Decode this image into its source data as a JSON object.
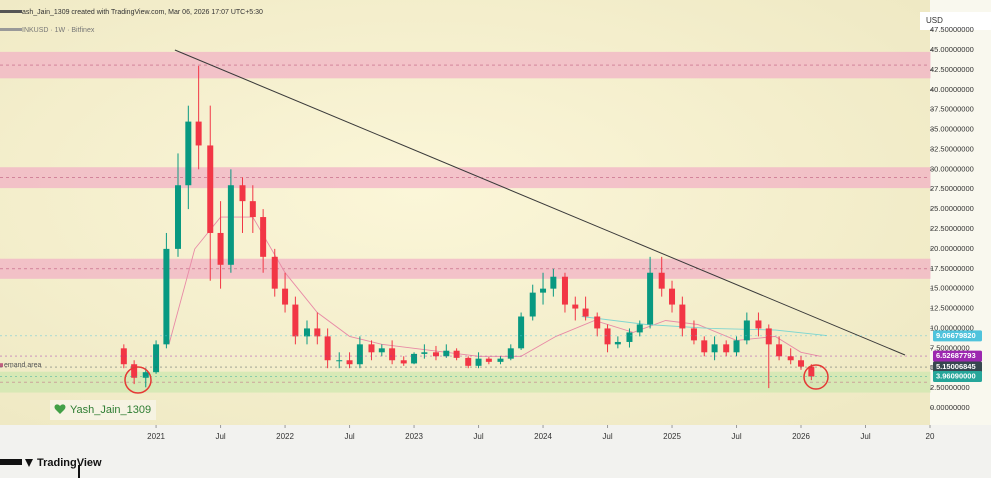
{
  "header": {
    "credit": "ash_Jain_1309 created with TradingView.com, Mar 06, 2026 17:07 UTC+5:30",
    "symbol": "INKUSD · 1W · Bitfinex"
  },
  "footer": {
    "brand": "TradingView"
  },
  "watermark": "Yash_Jain_1309",
  "chart_data": {
    "type": "candlestick",
    "axis_label": "USD",
    "up_color": "#089981",
    "down_color": "#f23645",
    "x": [
      2020.75,
      2020.83,
      2020.92,
      2021.0,
      2021.08,
      2021.17,
      2021.25,
      2021.33,
      2021.42,
      2021.5,
      2021.58,
      2021.67,
      2021.75,
      2021.83,
      2021.92,
      2022.0,
      2022.08,
      2022.17,
      2022.25,
      2022.33,
      2022.42,
      2022.5,
      2022.58,
      2022.67,
      2022.75,
      2022.83,
      2022.92,
      2023.0,
      2023.08,
      2023.17,
      2023.25,
      2023.33,
      2023.42,
      2023.5,
      2023.58,
      2023.67,
      2023.75,
      2023.83,
      2023.92,
      2024.0,
      2024.08,
      2024.17,
      2024.25,
      2024.33,
      2024.42,
      2024.5,
      2024.58,
      2024.67,
      2024.75,
      2024.83,
      2024.92,
      2025.0,
      2025.08,
      2025.17,
      2025.25,
      2025.33,
      2025.42,
      2025.5,
      2025.58,
      2025.67,
      2025.75,
      2025.83,
      2025.92,
      2026.0,
      2026.08
    ],
    "open": [
      7.5,
      5.5,
      3.8,
      4.5,
      8.0,
      20,
      28,
      36,
      33,
      22,
      18,
      28,
      26,
      24,
      19,
      15,
      13,
      9,
      10,
      9,
      6,
      6,
      5.5,
      8,
      7,
      7.5,
      6,
      5.6,
      6.8,
      7,
      6.5,
      7.2,
      6.3,
      5.3,
      6.2,
      5.8,
      6.2,
      7.5,
      11.5,
      14.5,
      15,
      16.5,
      13,
      12.5,
      11.5,
      10,
      8,
      8.3,
      9.5,
      10.5,
      17,
      15,
      13,
      10,
      8.5,
      7,
      8,
      7,
      8.5,
      11,
      10,
      8,
      6.5,
      6,
      5.2
    ],
    "high": [
      8.0,
      6.0,
      5.0,
      8.5,
      22,
      32,
      38,
      43,
      38,
      26,
      30,
      29,
      28,
      25,
      20,
      17,
      14,
      11,
      12,
      10,
      7,
      7,
      9,
      8.5,
      8,
      8.5,
      6.5,
      7,
      8,
      7.8,
      8,
      7.5,
      6.5,
      7,
      6.4,
      6.5,
      8,
      12,
      15.5,
      17,
      17.5,
      17,
      14,
      14,
      12,
      10.5,
      9,
      10,
      11,
      19,
      19,
      16,
      14,
      11,
      9,
      9,
      8.5,
      9,
      12,
      12,
      10.5,
      9,
      7.5,
      6.5,
      5.5
    ],
    "low": [
      5.0,
      3.0,
      2.6,
      4.3,
      7.5,
      19,
      25,
      30,
      16,
      15,
      17,
      22,
      22,
      17,
      14,
      12,
      8,
      8,
      8,
      5,
      5,
      5,
      5,
      6,
      6.5,
      5.5,
      5.3,
      5.5,
      6.2,
      6,
      6.3,
      6,
      5,
      5,
      5.5,
      5.5,
      6,
      7.3,
      11,
      13,
      14,
      12,
      11,
      11,
      9,
      7,
      7.5,
      7.6,
      9,
      10,
      14,
      12,
      9,
      8,
      6.5,
      6,
      6.5,
      6.5,
      8,
      9,
      2.5,
      6,
      5.5,
      4.8,
      3.5
    ],
    "close": [
      5.5,
      3.8,
      4.5,
      8.0,
      20,
      28,
      36,
      33,
      22,
      18,
      28,
      26,
      24,
      19,
      15,
      13,
      9,
      10,
      9,
      6,
      6,
      5.5,
      8,
      7,
      7.5,
      6,
      5.6,
      6.8,
      7,
      6.5,
      7.2,
      6.3,
      5.3,
      6.2,
      5.8,
      6.2,
      7.5,
      11.5,
      14.5,
      15,
      16.5,
      13,
      12.5,
      11.5,
      10,
      8,
      8.3,
      9.5,
      10.5,
      17,
      15,
      13,
      10,
      8.5,
      7,
      8,
      7,
      8.5,
      11,
      10,
      8,
      6.5,
      6,
      5.2,
      3.96
    ],
    "lines": [
      {
        "color": "#e88aa6",
        "x": [
          2021.1,
          2021.3,
          2021.5,
          2021.75,
          2022.0,
          2022.25,
          2022.5,
          2022.75,
          2023.0,
          2023.5,
          2023.83,
          2024.1,
          2024.4,
          2024.7,
          2024.95,
          2025.2,
          2025.5,
          2025.8,
          2026.0,
          2026.15
        ],
        "values": [
          8,
          20,
          24,
          24,
          17,
          12,
          9,
          8,
          7.5,
          6.5,
          6.5,
          9,
          11,
          9.5,
          11,
          10.5,
          8.5,
          9,
          7,
          6.5
        ]
      },
      {
        "color": "#7fd6d0",
        "x": [
          2024.3,
          2024.8,
          2025.3,
          2025.8,
          2026.2
        ],
        "values": [
          11.5,
          10.5,
          10,
          9.8,
          9.1
        ]
      }
    ],
    "trendline": {
      "color": "#3a3a3a",
      "x": [
        2021.146,
        2026.806
      ],
      "values": [
        45.0,
        6.66
      ]
    },
    "zones": [
      {
        "low": 41.5,
        "high": 44.7,
        "color": "#f2b3c6"
      },
      {
        "low": 27.7,
        "high": 30.2,
        "color": "#f2b3c6"
      },
      {
        "low": 16.3,
        "high": 18.7,
        "color": "#f2b3c6"
      },
      {
        "low": 2.0,
        "high": 4.5,
        "color": "#cfe8b0",
        "label": "emand area"
      }
    ],
    "price_labels": [
      {
        "value": 9.0667982,
        "label": "9.06679820",
        "color": "#4fc3dc"
      },
      {
        "value": 6.52687793,
        "label": "6.52687793",
        "color": "#9c27b0"
      },
      {
        "value": 5.15006845,
        "label": "5.15006845",
        "color": "#37474f"
      },
      {
        "value": 3.9609,
        "label": "3.96090000",
        "color": "#26a69a"
      }
    ],
    "xlim": [
      2019.79,
      2027.0
    ],
    "ylim": [
      -1.51,
      48.77
    ],
    "xticks": [
      2021,
      {
        "value": 2021.5,
        "label": "Jul"
      },
      2022,
      {
        "value": 2022.5,
        "label": "Jul"
      },
      2023,
      {
        "value": 2023.5,
        "label": "Jul"
      },
      2024,
      {
        "value": 2024.5,
        "label": "Jul"
      },
      2025,
      {
        "value": 2025.5,
        "label": "Jul"
      },
      2026,
      {
        "value": 2026.5,
        "label": "Jul"
      },
      {
        "value": 2027,
        "label": "20"
      }
    ],
    "yticks": [
      {
        "value": 0,
        "label": "0.00000000"
      },
      {
        "value": 2.5,
        "label": "2.50000000"
      },
      {
        "value": 5,
        "label": "5.00000000"
      },
      {
        "value": 7.5,
        "label": "7.50000000"
      },
      {
        "value": 10,
        "label": "10.00000000"
      },
      {
        "value": 12.5,
        "label": "12.50000000"
      },
      {
        "value": 15,
        "label": "15.00000000"
      },
      {
        "value": 17.5,
        "label": "17.50000000"
      },
      {
        "value": 20,
        "label": "20.00000000"
      },
      {
        "value": 22.5,
        "label": "22.50000000"
      },
      {
        "value": 25,
        "label": "25.00000000"
      },
      {
        "value": 27.5,
        "label": "27.50000000"
      },
      {
        "value": 30,
        "label": "30.00000000"
      },
      {
        "value": 32.5,
        "label": "32.50000000"
      },
      {
        "value": 35,
        "label": "35.00000000"
      },
      {
        "value": 37.5,
        "label": "37.50000000"
      },
      {
        "value": 40,
        "label": "40.00000000"
      },
      {
        "value": 42.5,
        "label": "42.50000000"
      },
      {
        "value": 45,
        "label": "45.00000000"
      },
      {
        "value": 47.5,
        "label": "47.50000000"
      }
    ],
    "grid": false
  }
}
